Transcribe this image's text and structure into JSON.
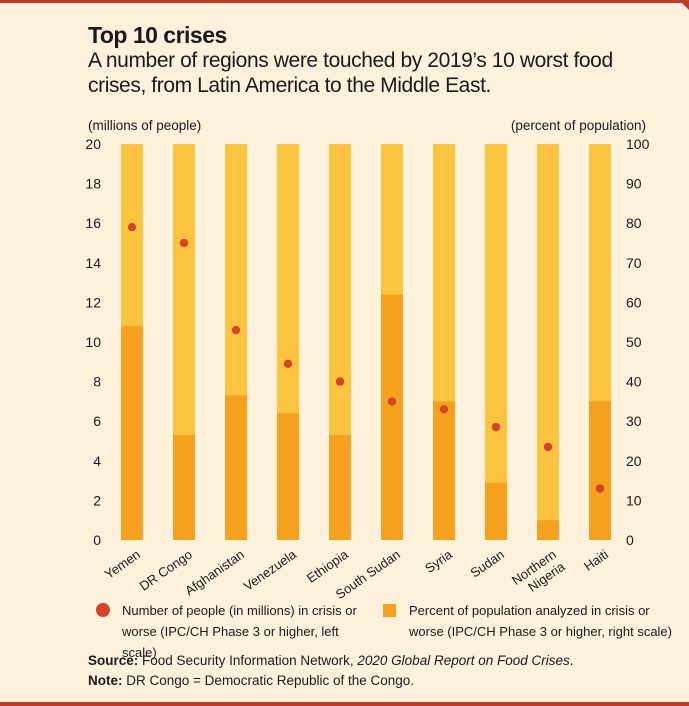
{
  "title": "Top 10 crises",
  "subtitle": "A number of regions were touched by 2019’s 10 worst food crises, from Latin America to the Middle East.",
  "colors": {
    "accent_red": "#c0392b",
    "dot": "#d7432a",
    "bar_background": "#fcc43e",
    "bar_value": "#f6a11d",
    "page_background": "#fdf1dc"
  },
  "chart_data": {
    "type": "bar",
    "left_axis_label": "(millions of people)",
    "right_axis_label": "(percent of population)",
    "left_ylim": [
      0,
      20
    ],
    "right_ylim": [
      0,
      100
    ],
    "left_ticks": [
      "0",
      "2",
      "4",
      "6",
      "8",
      "10",
      "12",
      "14",
      "16",
      "18",
      "20"
    ],
    "right_ticks": [
      "0",
      "10",
      "20",
      "30",
      "40",
      "50",
      "60",
      "70",
      "80",
      "90",
      "100"
    ],
    "categories": [
      "Yemen",
      "DR Congo",
      "Afghanistan",
      "Venezuela",
      "Ethiopia",
      "South Sudan",
      "Syria",
      "Sudan",
      "Northern Nigeria",
      "Haiti"
    ],
    "category_labels": [
      [
        "Yemen"
      ],
      [
        "DR Congo"
      ],
      [
        "Afghanistan"
      ],
      [
        "Venezuela"
      ],
      [
        "Ethiopia"
      ],
      [
        "South Sudan"
      ],
      [
        "Syria"
      ],
      [
        "Sudan"
      ],
      [
        "Northern",
        "Nigeria"
      ],
      [
        "Haiti"
      ]
    ],
    "series": [
      {
        "name": "Percent of population analyzed in crisis or worse (IPC/CH Phase 3 or higher, right scale)",
        "axis": "right",
        "kind": "bar",
        "values": [
          54,
          26.5,
          36.5,
          32,
          26.5,
          62,
          35,
          14.5,
          5,
          35
        ]
      },
      {
        "name": "Number of people (in millions) in crisis or worse (IPC/CH Phase 3 or higher, left scale)",
        "axis": "left",
        "kind": "dot",
        "values": [
          15.8,
          15.0,
          10.6,
          8.9,
          8.0,
          7.0,
          6.6,
          5.7,
          4.7,
          2.6
        ]
      }
    ],
    "legend": {
      "dot_line1": "Number of people (in millions) in crisis or",
      "dot_line2": "worse (IPC/CH Phase 3 or higher, left scale)",
      "bar_line1": "Percent of population analyzed in crisis or",
      "bar_line2": "worse (IPC/CH Phase 3 or higher, right scale)"
    }
  },
  "notes": {
    "source_label": "Source:",
    "source_text": "Food Security Information Network,",
    "source_italic": "2020 Global Report on Food Crises",
    "source_end": ".",
    "note_label": "Note:",
    "note_text": "DR Congo = Democratic Republic of the Congo."
  }
}
